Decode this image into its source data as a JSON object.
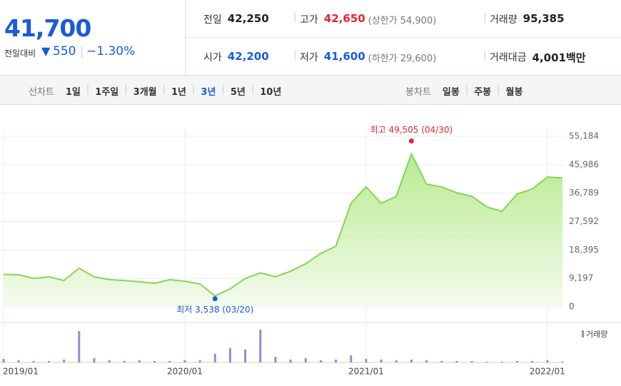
{
  "header": {
    "price": "41,700",
    "change_label": "전일대비",
    "change": "550",
    "change_pct": "−1.30%",
    "stats": [
      [
        {
          "label": "전일",
          "value": "42,250",
          "color": "#222222"
        },
        {
          "label": "고가",
          "value": "42,650",
          "note": "(상한가 54,900)",
          "color": "#e8262a"
        },
        {
          "label": "거래량",
          "value": "95,385",
          "color": "#222222"
        }
      ],
      [
        {
          "label": "시가",
          "value": "42,200",
          "color": "#1a5bd6"
        },
        {
          "label": "저가",
          "value": "41,600",
          "note": "(하한가 29,600)",
          "color": "#1a5bd6"
        },
        {
          "label": "거래대금",
          "value": "4,001백만",
          "color": "#222222"
        }
      ]
    ]
  },
  "tabs": {
    "line": {
      "label": "선차트",
      "items": [
        "1일",
        "1주일",
        "3개월",
        "1년",
        "3년",
        "5년",
        "10년"
      ],
      "selected": 4
    },
    "candle": {
      "label": "봉차트",
      "items": [
        "일봉",
        "주봉",
        "월봉"
      ]
    }
  },
  "chart_data": {
    "type": "line",
    "color": "#86d456",
    "categories": [
      "2019/01",
      null,
      null,
      null,
      null,
      null,
      null,
      null,
      null,
      null,
      null,
      null,
      "2020/01",
      null,
      null,
      null,
      null,
      null,
      null,
      null,
      null,
      null,
      null,
      null,
      "2021/01",
      null,
      null,
      null,
      null,
      null,
      null,
      null,
      null,
      null,
      null,
      null,
      "2022/01",
      null
    ],
    "values": [
      10500,
      10400,
      9200,
      9700,
      8500,
      12500,
      9700,
      8800,
      8500,
      8100,
      7600,
      8800,
      8300,
      7400,
      3538,
      5800,
      9200,
      11000,
      9700,
      11500,
      13900,
      17300,
      19600,
      33500,
      38800,
      33500,
      35800,
      49505,
      39700,
      38800,
      36900,
      35800,
      32300,
      30900,
      36500,
      38100,
      42000,
      41700
    ],
    "ylim": [
      0,
      55184
    ],
    "yticks": [
      {
        "value": 55184,
        "label": "55,184"
      },
      {
        "value": 45986,
        "label": "45,986"
      },
      {
        "value": 36789,
        "label": "36,789"
      },
      {
        "value": 27592,
        "label": "27,592"
      },
      {
        "value": 18395,
        "label": "18,395"
      },
      {
        "value": 9197,
        "label": "9,197"
      },
      0
    ],
    "grid": true,
    "annotations": {
      "high": "최고 49,505 (04/30)",
      "low": "최저 3,538 (03/20)"
    },
    "volume": {
      "name": "거래량",
      "color": "#9b87d4",
      "values": [
        5,
        3,
        2,
        2,
        4,
        44,
        6,
        3,
        2,
        3,
        2,
        2,
        3,
        3,
        12,
        20,
        18,
        46,
        8,
        4,
        6,
        3,
        4,
        10,
        5,
        4,
        3,
        4,
        3,
        2,
        2,
        2,
        1,
        1,
        2,
        2,
        3,
        1
      ]
    }
  }
}
